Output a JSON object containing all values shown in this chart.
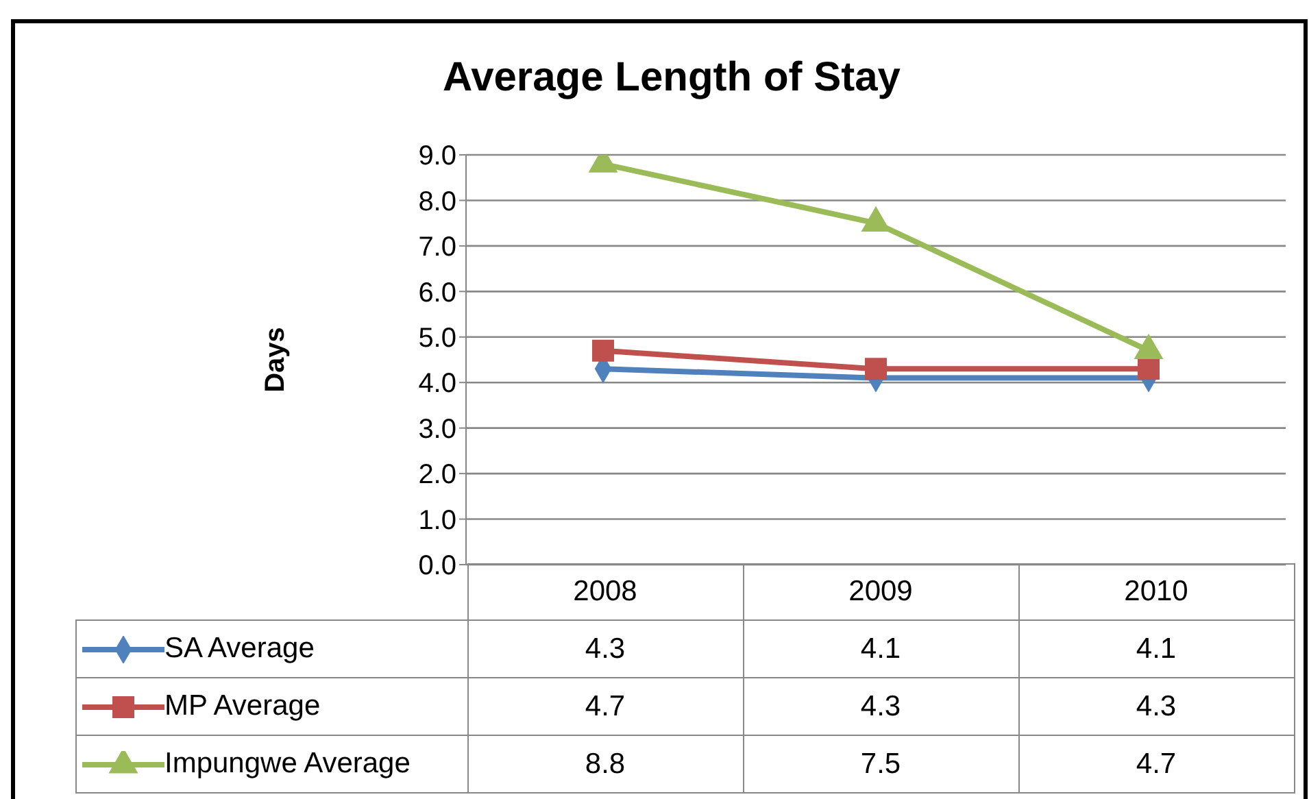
{
  "chart_data": {
    "type": "line",
    "title": "Average Length of Stay",
    "ylabel": "Days",
    "categories": [
      "2008",
      "2009",
      "2010"
    ],
    "series": [
      {
        "name": "SA Average",
        "color": "#4f81bd",
        "marker": "diamond",
        "values": [
          4.3,
          4.1,
          4.1
        ]
      },
      {
        "name": "MP Average",
        "color": "#c0504d",
        "marker": "square",
        "values": [
          4.7,
          4.3,
          4.3
        ]
      },
      {
        "name": "Impungwe Average",
        "color": "#9bbb59",
        "marker": "triangle",
        "values": [
          8.8,
          7.5,
          4.7
        ]
      }
    ],
    "ylim": [
      0,
      9
    ],
    "yticks": [
      {
        "value": 0,
        "label": "0.0"
      },
      {
        "value": 1,
        "label": "1.0"
      },
      {
        "value": 2,
        "label": "2.0"
      },
      {
        "value": 3,
        "label": "3.0"
      },
      {
        "value": 4,
        "label": "4.0"
      },
      {
        "value": 5,
        "label": "5.0"
      },
      {
        "value": 6,
        "label": "6.0"
      },
      {
        "value": 7,
        "label": "7.0"
      },
      {
        "value": 8,
        "label": "8.0"
      },
      {
        "value": 9,
        "label": "9.0"
      }
    ],
    "grid": "y",
    "legend": "bottom",
    "data_labels": true
  }
}
